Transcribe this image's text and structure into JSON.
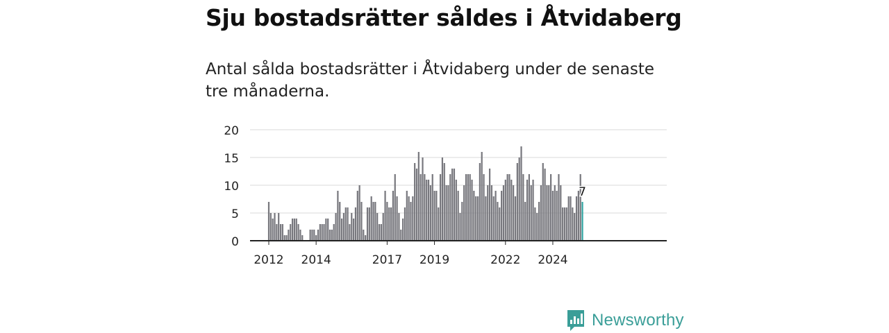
{
  "page": {
    "title": "Sju bostadsrätter såldes i Åtvidaberg",
    "subtitle": "Antal sålda bostadsrätter i Åtvidaberg under de senaste tre månaderna.",
    "brand": "Newsworthy",
    "colors": {
      "bar": "#77777d",
      "highlight": "#2fa3a0",
      "brand": "#3a9e98",
      "grid": "#d9d9d9",
      "axis": "#222222"
    }
  },
  "chart_data": {
    "type": "bar",
    "x_start": "2012-01",
    "x_interval": "month",
    "values": [
      7,
      5,
      4,
      5,
      3,
      5,
      3,
      3,
      1,
      1,
      2,
      3,
      4,
      4,
      4,
      3,
      2,
      1,
      null,
      null,
      null,
      2,
      2,
      2,
      1,
      2,
      3,
      3,
      3,
      4,
      4,
      2,
      2,
      3,
      5,
      9,
      7,
      4,
      5,
      6,
      6,
      3,
      5,
      4,
      6,
      9,
      10,
      7,
      2,
      1,
      6,
      6,
      8,
      7,
      7,
      5,
      3,
      3,
      5,
      9,
      7,
      6,
      6,
      9,
      12,
      8,
      5,
      2,
      4,
      6,
      9,
      8,
      7,
      8,
      14,
      13,
      16,
      12,
      15,
      12,
      11,
      11,
      10,
      12,
      9,
      9,
      6,
      12,
      15,
      14,
      10,
      10,
      12,
      13,
      13,
      11,
      9,
      5,
      7,
      10,
      12,
      12,
      12,
      11,
      9,
      8,
      8,
      14,
      16,
      12,
      8,
      10,
      13,
      10,
      8,
      9,
      7,
      6,
      9,
      10,
      11,
      12,
      12,
      11,
      10,
      8,
      14,
      15,
      17,
      12,
      7,
      11,
      12,
      10,
      11,
      6,
      5,
      7,
      10,
      14,
      13,
      10,
      10,
      12,
      9,
      10,
      9,
      12,
      10,
      6,
      6,
      6,
      8,
      8,
      6,
      5,
      8,
      9,
      12,
      7
    ],
    "highlight": {
      "label": "7",
      "value": 7
    },
    "x_ticks": [
      {
        "label": "2012",
        "date": "2012-01"
      },
      {
        "label": "2014",
        "date": "2014-01"
      },
      {
        "label": "2017",
        "date": "2017-01"
      },
      {
        "label": "2019",
        "date": "2019-01"
      },
      {
        "label": "2022",
        "date": "2022-01"
      },
      {
        "label": "2024",
        "date": "2024-01"
      }
    ],
    "y_ticks": [
      "0",
      "5",
      "10",
      "15",
      "20"
    ],
    "ylim": [
      0,
      20
    ],
    "grid": true,
    "legend": "none"
  }
}
